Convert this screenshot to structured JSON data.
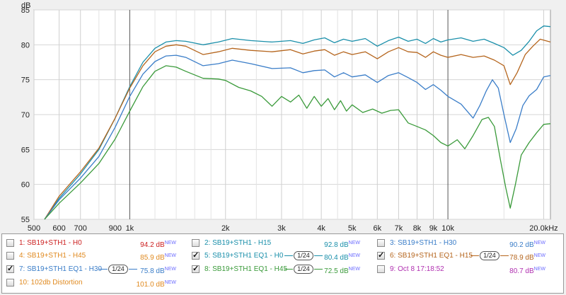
{
  "chart_data": {
    "type": "line",
    "y_unit": "dB",
    "x_scale": "log",
    "xlim": [
      500,
      21000
    ],
    "ylim": [
      55,
      85
    ],
    "y_ticks": [
      55,
      60,
      65,
      70,
      75,
      80,
      85
    ],
    "x_ticks": [
      {
        "v": 500,
        "label": "500"
      },
      {
        "v": 600,
        "label": "600"
      },
      {
        "v": 700,
        "label": "700"
      },
      {
        "v": 900,
        "label": "900"
      },
      {
        "v": 1000,
        "label": "1k"
      },
      {
        "v": 2000,
        "label": "2k"
      },
      {
        "v": 3000,
        "label": "3k"
      },
      {
        "v": 4000,
        "label": "4k"
      },
      {
        "v": 5000,
        "label": "5k"
      },
      {
        "v": 6000,
        "label": "6k"
      },
      {
        "v": 7000,
        "label": "7k"
      },
      {
        "v": 8000,
        "label": "8k"
      },
      {
        "v": 9000,
        "label": "9k"
      },
      {
        "v": 10000,
        "label": "10k"
      },
      {
        "v": 20000,
        "label": "20.0kHz"
      }
    ],
    "minor_x": [
      800,
      1200,
      1400,
      1600,
      1800,
      2500,
      3500,
      4500,
      15000
    ],
    "major_x": [
      1000,
      10000
    ],
    "grid": true,
    "series": [
      {
        "name": "5: SB19+STH1 EQ1 - H0",
        "color": "#1a8faa",
        "points": [
          [
            540,
            55
          ],
          [
            600,
            58
          ],
          [
            700,
            61.5
          ],
          [
            800,
            65
          ],
          [
            900,
            69.5
          ],
          [
            1000,
            74
          ],
          [
            1100,
            77.5
          ],
          [
            1200,
            79.5
          ],
          [
            1300,
            80.4
          ],
          [
            1400,
            80.6
          ],
          [
            1500,
            80.5
          ],
          [
            1700,
            80
          ],
          [
            1900,
            80.4
          ],
          [
            2100,
            80.9
          ],
          [
            2400,
            80.6
          ],
          [
            2800,
            80.4
          ],
          [
            3200,
            80.6
          ],
          [
            3500,
            80.2
          ],
          [
            3800,
            80.7
          ],
          [
            4100,
            81
          ],
          [
            4400,
            80.3
          ],
          [
            4700,
            80.8
          ],
          [
            5000,
            80.5
          ],
          [
            5500,
            80.9
          ],
          [
            6000,
            79.8
          ],
          [
            6500,
            80.6
          ],
          [
            7000,
            81.1
          ],
          [
            7500,
            80.5
          ],
          [
            8000,
            80.8
          ],
          [
            8500,
            80.2
          ],
          [
            9000,
            80.9
          ],
          [
            9500,
            80.4
          ],
          [
            10000,
            80.7
          ],
          [
            11000,
            81
          ],
          [
            12000,
            80.5
          ],
          [
            13000,
            80.8
          ],
          [
            14000,
            80.2
          ],
          [
            15000,
            79.6
          ],
          [
            16000,
            78.5
          ],
          [
            17000,
            79.2
          ],
          [
            18000,
            80.5
          ],
          [
            19000,
            82
          ],
          [
            20000,
            82.7
          ],
          [
            21000,
            82.6
          ]
        ]
      },
      {
        "name": "6: SB19+STH1 EQ1 - H15",
        "color": "#b5651d",
        "points": [
          [
            540,
            55
          ],
          [
            600,
            58.3
          ],
          [
            700,
            61.8
          ],
          [
            800,
            65.2
          ],
          [
            900,
            69.5
          ],
          [
            1000,
            73.8
          ],
          [
            1100,
            77
          ],
          [
            1200,
            79
          ],
          [
            1300,
            79.8
          ],
          [
            1400,
            80
          ],
          [
            1500,
            79.8
          ],
          [
            1700,
            78.6
          ],
          [
            1900,
            79
          ],
          [
            2100,
            79.5
          ],
          [
            2400,
            79.2
          ],
          [
            2800,
            79
          ],
          [
            3200,
            79.3
          ],
          [
            3500,
            78.7
          ],
          [
            3800,
            79.1
          ],
          [
            4100,
            79.3
          ],
          [
            4400,
            78.5
          ],
          [
            4700,
            79
          ],
          [
            5000,
            78.6
          ],
          [
            5500,
            79
          ],
          [
            6000,
            78
          ],
          [
            6500,
            79
          ],
          [
            7000,
            79.6
          ],
          [
            7500,
            79
          ],
          [
            8000,
            78.9
          ],
          [
            8500,
            78.2
          ],
          [
            9000,
            79
          ],
          [
            9500,
            78.5
          ],
          [
            10000,
            78.2
          ],
          [
            11000,
            78.6
          ],
          [
            12000,
            78.2
          ],
          [
            13000,
            78.4
          ],
          [
            14000,
            77.8
          ],
          [
            15000,
            77
          ],
          [
            15700,
            74.3
          ],
          [
            16500,
            76
          ],
          [
            17500,
            78.6
          ],
          [
            18500,
            79.8
          ],
          [
            19500,
            80.8
          ],
          [
            21000,
            80.4
          ]
        ]
      },
      {
        "name": "7: SB19+STH1 EQ1 - H30",
        "color": "#3a7dc8",
        "points": [
          [
            540,
            55
          ],
          [
            600,
            57.8
          ],
          [
            700,
            60.9
          ],
          [
            800,
            64
          ],
          [
            900,
            68.2
          ],
          [
            1000,
            72.6
          ],
          [
            1100,
            75.8
          ],
          [
            1200,
            77.6
          ],
          [
            1300,
            78.4
          ],
          [
            1400,
            78.5
          ],
          [
            1500,
            78.2
          ],
          [
            1700,
            77
          ],
          [
            1900,
            77.3
          ],
          [
            2100,
            77.8
          ],
          [
            2400,
            77.3
          ],
          [
            2800,
            76.6
          ],
          [
            3200,
            76.7
          ],
          [
            3500,
            76
          ],
          [
            3800,
            76.3
          ],
          [
            4100,
            76.4
          ],
          [
            4400,
            75.4
          ],
          [
            4700,
            76
          ],
          [
            5000,
            75.4
          ],
          [
            5500,
            75.7
          ],
          [
            6000,
            74.6
          ],
          [
            6500,
            75.6
          ],
          [
            7000,
            76
          ],
          [
            7500,
            75.3
          ],
          [
            8000,
            74.6
          ],
          [
            8500,
            73.6
          ],
          [
            9000,
            74.3
          ],
          [
            9500,
            73.5
          ],
          [
            10000,
            72.6
          ],
          [
            11000,
            71.5
          ],
          [
            12000,
            69.5
          ],
          [
            12600,
            71.3
          ],
          [
            13200,
            73.4
          ],
          [
            13800,
            75
          ],
          [
            14400,
            73.8
          ],
          [
            15000,
            70
          ],
          [
            15700,
            66
          ],
          [
            16400,
            68
          ],
          [
            17200,
            71.3
          ],
          [
            18000,
            72.7
          ],
          [
            19000,
            73.6
          ],
          [
            20000,
            75.4
          ],
          [
            21000,
            75.6
          ]
        ]
      },
      {
        "name": "8: SB19+STH1 EQ1 - H45",
        "color": "#3a9a3a",
        "points": [
          [
            540,
            55
          ],
          [
            600,
            57.3
          ],
          [
            700,
            60.2
          ],
          [
            800,
            63
          ],
          [
            900,
            66.5
          ],
          [
            1000,
            70.5
          ],
          [
            1100,
            74
          ],
          [
            1200,
            76.2
          ],
          [
            1300,
            77
          ],
          [
            1400,
            76.8
          ],
          [
            1500,
            76.2
          ],
          [
            1700,
            75.2
          ],
          [
            1900,
            75.1
          ],
          [
            2000,
            74.9
          ],
          [
            2200,
            73.9
          ],
          [
            2400,
            73.4
          ],
          [
            2600,
            72.6
          ],
          [
            2800,
            71.2
          ],
          [
            3000,
            72.6
          ],
          [
            3200,
            71.8
          ],
          [
            3400,
            72.8
          ],
          [
            3600,
            70.9
          ],
          [
            3800,
            72.6
          ],
          [
            4000,
            71.2
          ],
          [
            4200,
            72.3
          ],
          [
            4400,
            70.7
          ],
          [
            4600,
            72
          ],
          [
            4800,
            70.5
          ],
          [
            5000,
            71.4
          ],
          [
            5400,
            70.3
          ],
          [
            5800,
            70.8
          ],
          [
            6200,
            70.2
          ],
          [
            6600,
            70.6
          ],
          [
            7000,
            70.7
          ],
          [
            7500,
            68.8
          ],
          [
            8000,
            68.3
          ],
          [
            8500,
            67.8
          ],
          [
            9000,
            67
          ],
          [
            9500,
            66
          ],
          [
            10000,
            65.5
          ],
          [
            10700,
            66.4
          ],
          [
            11300,
            65.1
          ],
          [
            12000,
            67
          ],
          [
            12800,
            69.3
          ],
          [
            13400,
            69.6
          ],
          [
            14000,
            68.3
          ],
          [
            14600,
            63.7
          ],
          [
            15200,
            59.5
          ],
          [
            15700,
            56.6
          ],
          [
            16300,
            60
          ],
          [
            17000,
            64.2
          ],
          [
            18000,
            66
          ],
          [
            19000,
            67.4
          ],
          [
            20000,
            68.6
          ],
          [
            21000,
            68.7
          ]
        ]
      }
    ]
  },
  "legend": [
    {
      "checked": false,
      "label": "1: SB19+STH1 - H0",
      "db": "94.2 dB",
      "sup": "NEW",
      "color": "#cc2020",
      "smoothing": ""
    },
    {
      "checked": false,
      "label": "2: SB19+STH1 - H15",
      "db": "92.8 dB",
      "sup": "NEW",
      "color": "#1a8faa",
      "smoothing": ""
    },
    {
      "checked": false,
      "label": "3: SB19+STH1 - H30",
      "db": "90.2 dB",
      "sup": "NEW",
      "color": "#3a7dc8",
      "smoothing": ""
    },
    {
      "checked": false,
      "label": "4: SB19+STH1 - H45",
      "db": "85.9 dB",
      "sup": "NEW",
      "color": "#e08a20",
      "smoothing": ""
    },
    {
      "checked": true,
      "label": "5: SB19+STH1 EQ1 - H0",
      "db": "80.4 dB",
      "sup": "NEW",
      "color": "#1a8faa",
      "smoothing": "1/24"
    },
    {
      "checked": true,
      "label": "6: SB19+STH1 EQ1 - H15",
      "db": "78.9 dB",
      "sup": "NEW",
      "color": "#b5651d",
      "smoothing": "1/24"
    },
    {
      "checked": true,
      "label": "7: SB19+STH1 EQ1 - H30",
      "db": "75.8 dB",
      "sup": "NEW",
      "color": "#3a7dc8",
      "smoothing": "1/24"
    },
    {
      "checked": true,
      "label": "8: SB19+STH1 EQ1 - H45",
      "db": "72.5 dB",
      "sup": "NEW",
      "color": "#3a9a3a",
      "smoothing": "1/24"
    },
    {
      "checked": false,
      "label": "9: Oct 8 17:18:52",
      "db": "80.7 dB",
      "sup": "NEW",
      "color": "#b030b0",
      "smoothing": ""
    },
    {
      "checked": false,
      "label": "10: 102db Distortion",
      "db": "101.0 dB",
      "sup": "NEW",
      "color": "#e08a20",
      "smoothing": ""
    }
  ]
}
